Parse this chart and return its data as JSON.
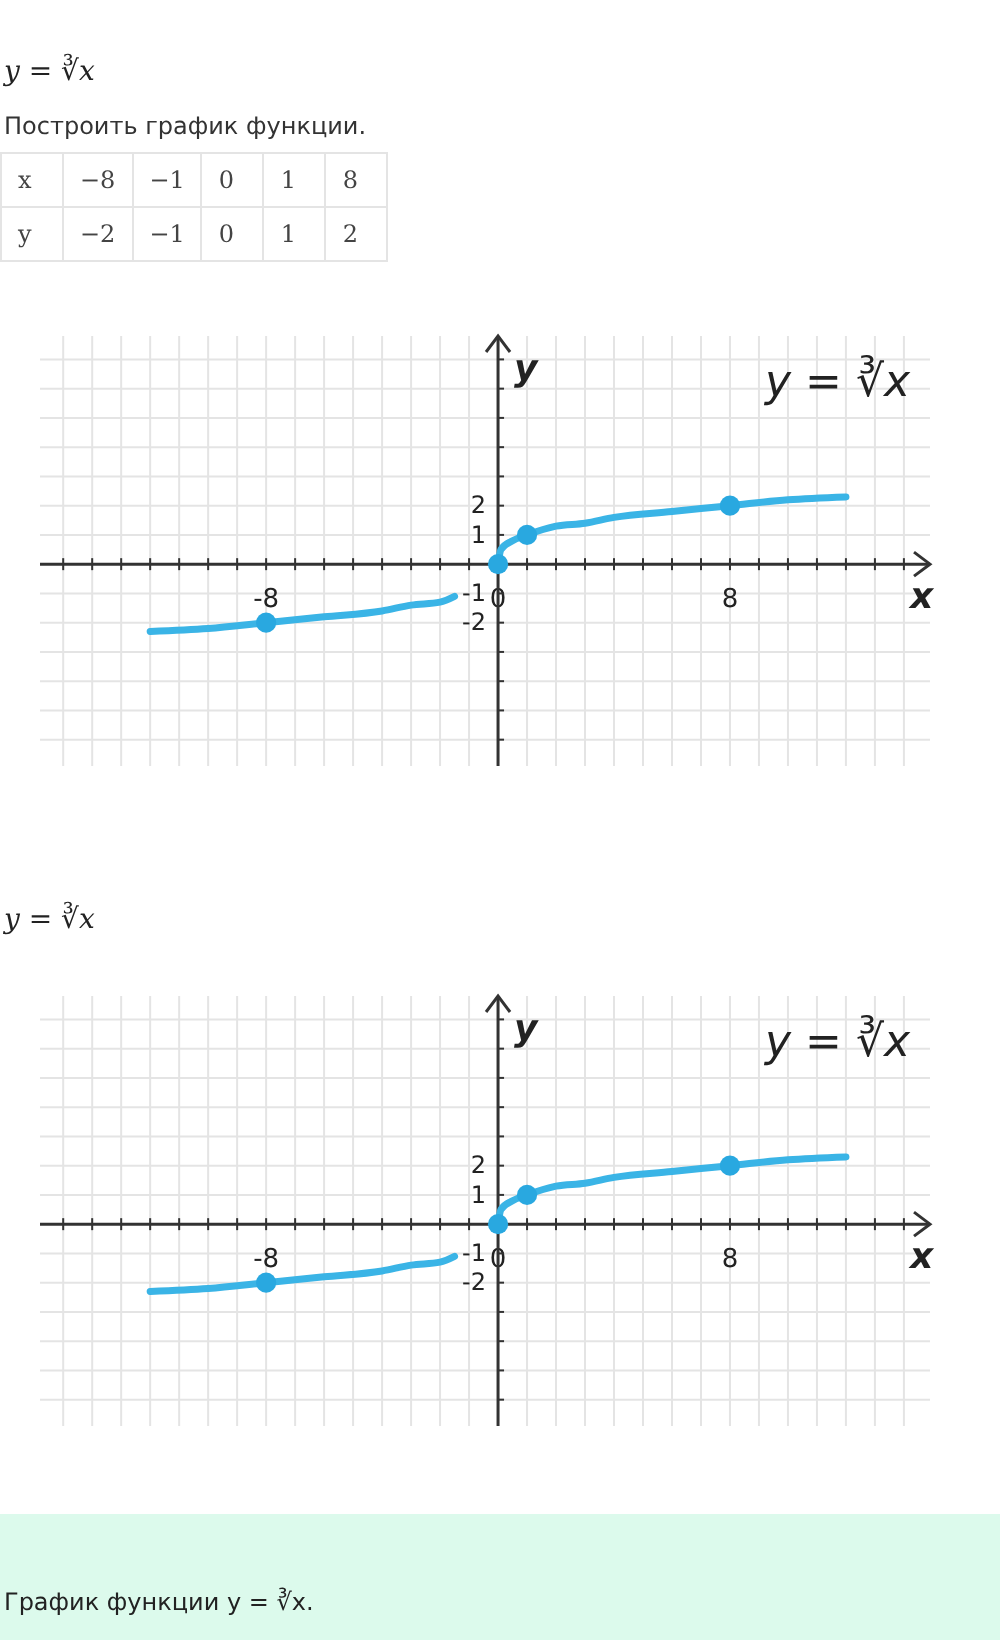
{
  "chart_data": [
    {
      "type": "line",
      "title": "y = ∛x",
      "subtitle": "Построить график функции.",
      "xlabel": "x",
      "ylabel": "y",
      "annotations": [
        "x",
        "−8",
        "−1",
        "0",
        "1",
        "8",
        "y",
        "−2",
        "−1",
        "0",
        "1",
        "2"
      ],
      "xlim": [
        -15.8,
        14.9
      ],
      "ylim": [
        -6.9,
        7.8
      ],
      "xticks": [
        {
          "value": -15,
          "label": null
        },
        {
          "value": -14,
          "label": null
        },
        {
          "value": -13,
          "label": null
        },
        {
          "value": -12,
          "label": null
        },
        {
          "value": -11,
          "label": null
        },
        {
          "value": -10,
          "label": null
        },
        {
          "value": -9,
          "label": null
        },
        -8,
        {
          "value": -7,
          "label": null
        },
        {
          "value": -6,
          "label": null
        },
        {
          "value": -5,
          "label": null
        },
        {
          "value": -4,
          "label": null
        },
        {
          "value": -3,
          "label": null
        },
        {
          "value": -2,
          "label": null
        },
        {
          "value": -1,
          "label": null
        },
        0,
        {
          "value": 1,
          "label": null
        },
        {
          "value": 2,
          "label": null
        },
        {
          "value": 3,
          "label": null
        },
        {
          "value": 4,
          "label": null
        },
        {
          "value": 5,
          "label": null
        },
        {
          "value": 6,
          "label": null
        },
        {
          "value": 7,
          "label": null
        },
        8,
        {
          "value": 9,
          "label": null
        },
        {
          "value": 10,
          "label": null
        },
        {
          "value": 11,
          "label": null
        },
        {
          "value": 12,
          "label": null
        },
        {
          "value": 13,
          "label": null
        },
        {
          "value": 14,
          "label": null
        }
      ],
      "yticks": [
        {
          "value": -6,
          "label": null
        },
        {
          "value": -5,
          "label": null
        },
        {
          "value": -4,
          "label": null
        },
        {
          "value": -3,
          "label": null
        },
        -2,
        -1,
        1,
        2,
        {
          "value": 3,
          "label": null
        },
        {
          "value": 4,
          "label": null
        },
        {
          "value": 5,
          "label": null
        },
        {
          "value": 6,
          "label": null
        },
        {
          "value": 7,
          "label": null
        }
      ],
      "grid": true,
      "series": [
        {
          "name": "y = ∛x",
          "color": "#3ab4e6",
          "x": [
            -12,
            -10,
            -8,
            -6,
            -4,
            -3,
            -2,
            -1.5,
            -1,
            0,
            0.1,
            0.5,
            1,
            2,
            3,
            4,
            6,
            8,
            10,
            12
          ],
          "values": [
            -2.3,
            -2.2,
            -2,
            -1.8,
            -1.6,
            -1.4,
            -1.3,
            -1.1,
            null,
            0,
            0.5,
            0.8,
            1,
            1.3,
            1.4,
            1.6,
            1.8,
            2,
            2.2,
            2.3
          ]
        },
        {
          "type": "scatter",
          "color": "#29a8e0",
          "marker": "circle",
          "x": [
            -8,
            0,
            1,
            8
          ],
          "values": [
            -2,
            0,
            1,
            2
          ]
        }
      ]
    },
    {
      "type": "line",
      "title": "y = ∛x",
      "xlabel": "x",
      "ylabel": "y",
      "annotations": [
        "График функции y = ∛x."
      ],
      "xlim": [
        -15.8,
        14.9
      ],
      "ylim": [
        -6.9,
        7.8
      ],
      "xticks": [
        {
          "value": -15,
          "label": null
        },
        {
          "value": -14,
          "label": null
        },
        {
          "value": -13,
          "label": null
        },
        {
          "value": -12,
          "label": null
        },
        {
          "value": -11,
          "label": null
        },
        {
          "value": -10,
          "label": null
        },
        {
          "value": -9,
          "label": null
        },
        -8,
        {
          "value": -7,
          "label": null
        },
        {
          "value": -6,
          "label": null
        },
        {
          "value": -5,
          "label": null
        },
        {
          "value": -4,
          "label": null
        },
        {
          "value": -3,
          "label": null
        },
        {
          "value": -2,
          "label": null
        },
        {
          "value": -1,
          "label": null
        },
        0,
        {
          "value": 1,
          "label": null
        },
        {
          "value": 2,
          "label": null
        },
        {
          "value": 3,
          "label": null
        },
        {
          "value": 4,
          "label": null
        },
        {
          "value": 5,
          "label": null
        },
        {
          "value": 6,
          "label": null
        },
        {
          "value": 7,
          "label": null
        },
        8,
        {
          "value": 9,
          "label": null
        },
        {
          "value": 10,
          "label": null
        },
        {
          "value": 11,
          "label": null
        },
        {
          "value": 12,
          "label": null
        },
        {
          "value": 13,
          "label": null
        },
        {
          "value": 14,
          "label": null
        }
      ],
      "yticks": [
        {
          "value": -6,
          "label": null
        },
        {
          "value": -5,
          "label": null
        },
        {
          "value": -4,
          "label": null
        },
        {
          "value": -3,
          "label": null
        },
        -2,
        -1,
        1,
        2,
        {
          "value": 3,
          "label": null
        },
        {
          "value": 4,
          "label": null
        },
        {
          "value": 5,
          "label": null
        },
        {
          "value": 6,
          "label": null
        },
        {
          "value": 7,
          "label": null
        }
      ],
      "grid": true,
      "series": [
        {
          "name": "y = ∛x",
          "color": "#3ab4e6",
          "x": [
            -12,
            -10,
            -8,
            -6,
            -4,
            -3,
            -2,
            -1.5,
            -1,
            0,
            0.1,
            0.5,
            1,
            2,
            3,
            4,
            6,
            8,
            10,
            12
          ],
          "values": [
            -2.3,
            -2.2,
            -2,
            -1.8,
            -1.6,
            -1.4,
            -1.3,
            -1.1,
            null,
            0,
            0.5,
            0.8,
            1,
            1.3,
            1.4,
            1.6,
            1.8,
            2,
            2.2,
            2.3
          ]
        },
        {
          "type": "scatter",
          "color": "#29a8e0",
          "marker": "circle",
          "x": [
            -8,
            0,
            1,
            8
          ],
          "values": [
            -2,
            0,
            1,
            2
          ]
        }
      ]
    }
  ]
}
